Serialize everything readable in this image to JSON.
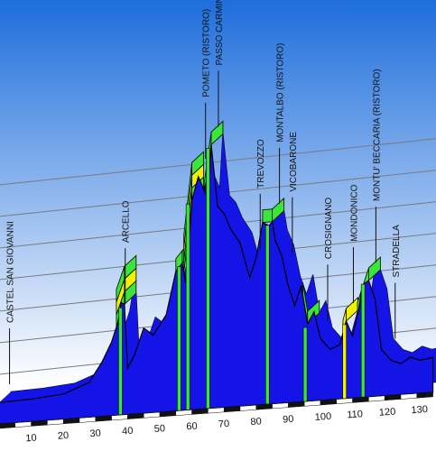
{
  "chart_data": {
    "type": "area",
    "style": "3d elevation profile with climb markers",
    "x_unit": "km",
    "xlim": [
      0,
      135
    ],
    "x_ticks": [
      10,
      20,
      30,
      40,
      50,
      60,
      70,
      80,
      90,
      100,
      110,
      120,
      130
    ],
    "profile": [
      [
        0,
        55
      ],
      [
        10,
        58
      ],
      [
        20,
        65
      ],
      [
        28,
        90
      ],
      [
        32,
        140
      ],
      [
        35,
        190
      ],
      [
        37,
        240
      ],
      [
        38,
        290
      ],
      [
        39,
        285
      ],
      [
        40,
        120
      ],
      [
        42,
        150
      ],
      [
        45,
        220
      ],
      [
        48,
        200
      ],
      [
        52,
        250
      ],
      [
        55,
        360
      ],
      [
        57,
        380
      ],
      [
        58,
        330
      ],
      [
        59,
        420
      ],
      [
        60,
        540
      ],
      [
        62,
        600
      ],
      [
        64,
        560
      ],
      [
        65,
        540
      ],
      [
        66,
        680
      ],
      [
        68,
        520
      ],
      [
        70,
        500
      ],
      [
        72,
        460
      ],
      [
        75,
        420
      ],
      [
        78,
        330
      ],
      [
        80,
        380
      ],
      [
        82,
        470
      ],
      [
        84,
        460
      ],
      [
        85,
        470
      ],
      [
        86,
        420
      ],
      [
        88,
        380
      ],
      [
        90,
        300
      ],
      [
        92,
        250
      ],
      [
        94,
        300
      ],
      [
        96,
        200
      ],
      [
        98,
        230
      ],
      [
        100,
        160
      ],
      [
        103,
        130
      ],
      [
        106,
        140
      ],
      [
        108,
        200
      ],
      [
        110,
        160
      ],
      [
        112,
        230
      ],
      [
        113,
        290
      ],
      [
        115,
        300
      ],
      [
        117,
        250
      ],
      [
        119,
        120
      ],
      [
        122,
        90
      ],
      [
        125,
        80
      ],
      [
        128,
        95
      ],
      [
        131,
        85
      ],
      [
        135,
        90
      ]
    ],
    "waypoints": [
      {
        "name": "CASTEL SAN GIOVANNI",
        "km": 1
      },
      {
        "name": "ARCELLO",
        "km": 37
      },
      {
        "name": "POMETO (RISTORO)",
        "km": 62
      },
      {
        "name": "PASSO CARMINE",
        "km": 66
      },
      {
        "name": "TREVOZZO",
        "km": 79
      },
      {
        "name": "MONTALBO (RISTORO)",
        "km": 85
      },
      {
        "name": "VICOBARONE",
        "km": 89
      },
      {
        "name": "CROSIGNANO",
        "km": 100
      },
      {
        "name": "MONDONICO",
        "km": 108
      },
      {
        "name": "MONTU' BECCARIA (RISTORO)",
        "km": 115
      },
      {
        "name": "STRADELLA",
        "km": 121
      }
    ],
    "climbs": [
      {
        "km_start": 36.5,
        "km_top": 39,
        "bands": [
          "#39e639",
          "#f2f200",
          "#39e639"
        ]
      },
      {
        "km_start": 55,
        "km_top": 57,
        "bands": [
          "#39e639"
        ]
      },
      {
        "km_start": 57.5,
        "km_top": 60,
        "bands": [
          "#39e639",
          "#f2f200",
          "#39e639"
        ]
      },
      {
        "km_start": 64,
        "km_top": 66,
        "bands": [
          "#39e639"
        ]
      },
      {
        "km_start": 82,
        "km_top": 85,
        "bands": [
          "#39e639"
        ]
      },
      {
        "km_start": 94.5,
        "km_top": 96,
        "bands": [
          "#39e639"
        ]
      },
      {
        "km_start": 107,
        "km_top": 108,
        "bands": [
          "#f2f200"
        ]
      },
      {
        "km_start": 111.5,
        "km_top": 115,
        "bands": [
          "#39e639"
        ]
      }
    ]
  },
  "colors": {
    "sky_top": "#1e6edc",
    "sky_bottom": "#ffffff",
    "profile_fill": "#1414e6",
    "profile_edge": "#000000",
    "climb_green": "#39e639",
    "climb_yellow": "#f2f200",
    "km_strip": "#111111"
  }
}
